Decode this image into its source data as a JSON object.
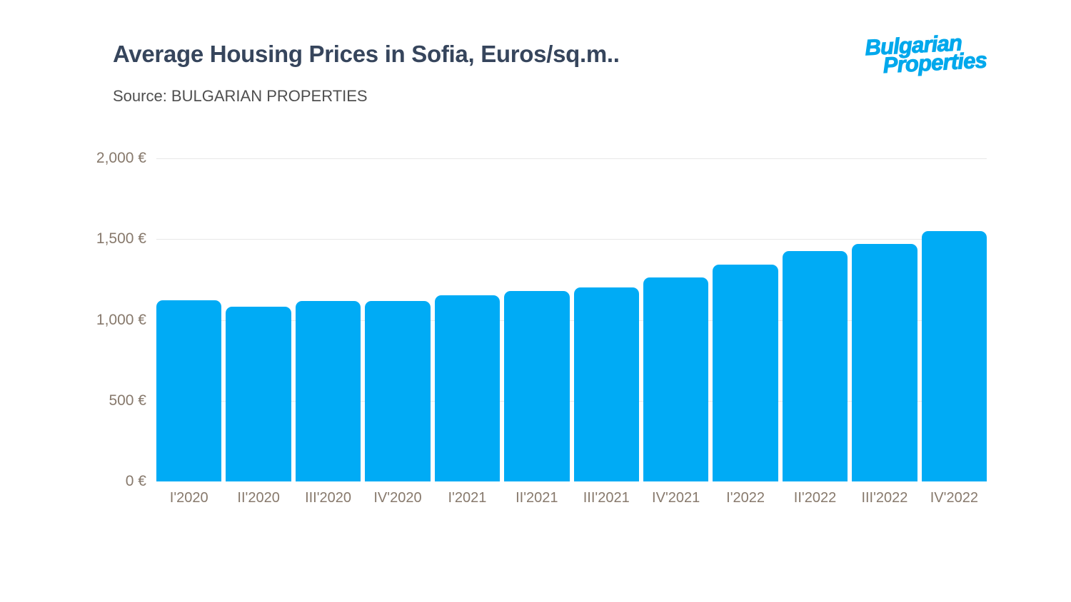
{
  "header": {
    "title": "Average Housing Prices in Sofia, Euros/sq.m..",
    "source": "Source: BULGARIAN PROPERTIES",
    "logo_line1": "Bulgarian",
    "logo_line2": "Properties"
  },
  "colors": {
    "background": "#FFFFFF",
    "bar": "#00ABF5",
    "logo": "#00A8EC",
    "title": "#36455C",
    "source": "#4F4F4F",
    "axis_label": "#87796C",
    "gridline": "#E8E8E8"
  },
  "chart_data": {
    "type": "bar",
    "title": "Average Housing Prices in Sofia, Euros/sq.m..",
    "source": "Source: BULGARIAN PROPERTIES",
    "unit": "Euros/sq.m",
    "categories": [
      "I'2020",
      "II'2020",
      "III'2020",
      "IV'2020",
      "I'2021",
      "II'2021",
      "III'2021",
      "IV'2021",
      "I'2022",
      "II'2022",
      "III'2022",
      "IV'2022"
    ],
    "values": [
      1123,
      1080,
      1116,
      1118,
      1151,
      1177,
      1202,
      1261,
      1344,
      1426,
      1470,
      1549
    ],
    "xlabel": "",
    "ylabel": "",
    "ylim": [
      0,
      2000
    ],
    "yticks": [
      0,
      500,
      1000,
      1500,
      2000
    ],
    "ytick_labels": [
      "0 €",
      "500 €",
      "1,000 €",
      "1,500 €",
      "2,000 €"
    ],
    "grid": true,
    "legend": false,
    "bar_color": "#00ABF5"
  }
}
